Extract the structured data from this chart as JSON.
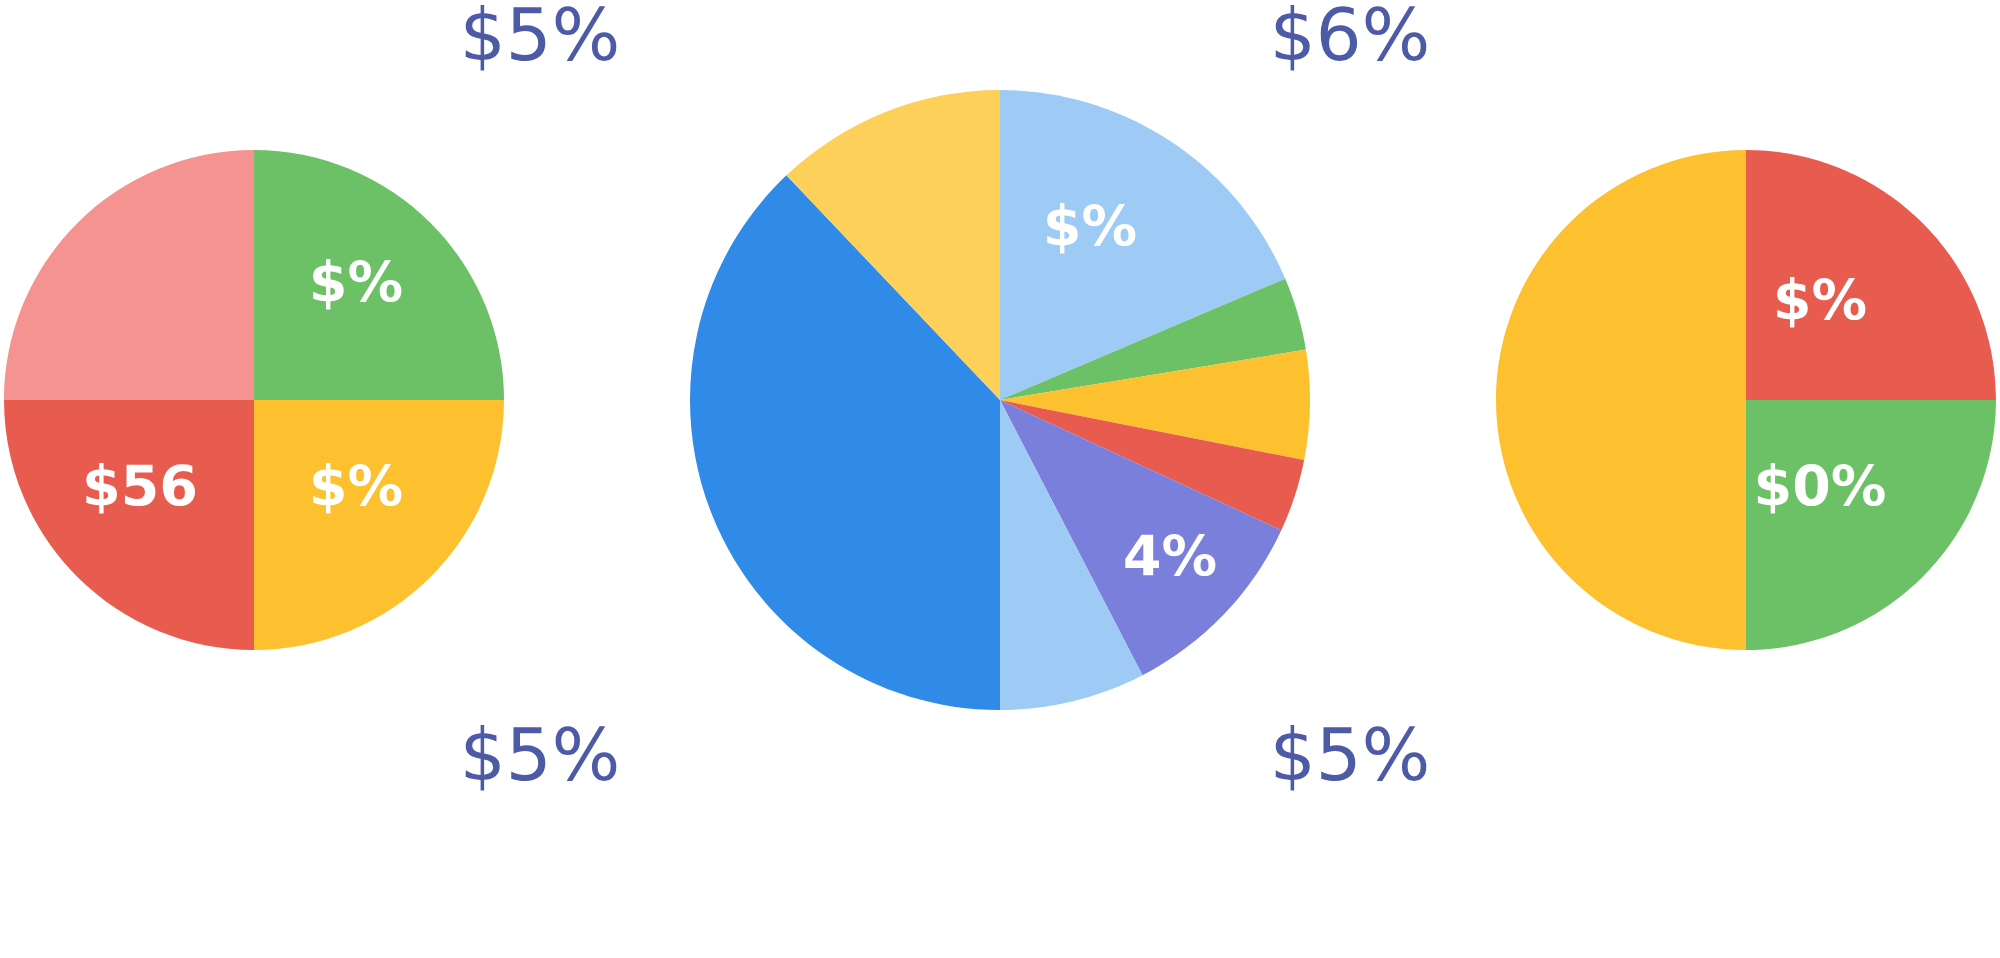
{
  "chart_data": [
    {
      "type": "pie",
      "categories": [
        null,
        null,
        null,
        null
      ],
      "values": [
        25,
        25,
        25,
        25
      ],
      "colors": [
        "#6cc065",
        "#fdc02f",
        "#e85c50",
        "#f59390"
      ],
      "annotations": [
        "$5%",
        "$5%",
        "$%",
        "$%",
        "$56"
      ]
    },
    {
      "type": "pie",
      "categories": [
        null,
        null,
        null,
        null,
        null,
        null,
        null,
        null
      ],
      "values": [
        18.6,
        3.8,
        5.7,
        3.8,
        10.5,
        7.6,
        37.9,
        12.1
      ],
      "colors": [
        "#9ecbf5",
        "#6cc065",
        "#fdc02f",
        "#e85c50",
        "#7b7fdc",
        "#9ecbf5",
        "#2f8ae8",
        "#fdd05a"
      ],
      "annotations": [
        "$%",
        "4%"
      ]
    },
    {
      "type": "pie",
      "categories": [
        null,
        null,
        null
      ],
      "values": [
        25,
        25,
        50
      ],
      "colors": [
        "#e85c50",
        "#6cc065",
        "#fdc02f"
      ],
      "annotations": [
        "$6%",
        "$5%",
        "$%",
        "$0%"
      ]
    }
  ]
}
